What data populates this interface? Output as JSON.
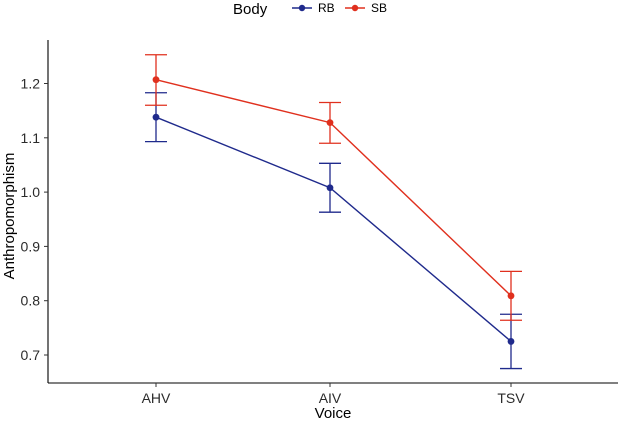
{
  "chart_data": {
    "type": "line",
    "title": "",
    "xlabel": "Voice",
    "ylabel": "Anthropomorphism",
    "categories": [
      "AHV",
      "AIV",
      "TSV"
    ],
    "ylim": [
      0.65,
      1.3
    ],
    "yticks": [
      0.7,
      0.8,
      0.9,
      1.0,
      1.1,
      1.2
    ],
    "ytick_labels": [
      "0.7",
      "0.8",
      "0.9",
      "1.0",
      "1.1",
      "1.2"
    ],
    "grid": false,
    "legend": {
      "title": "Body",
      "position": "top",
      "entries": [
        "RB",
        "SB"
      ]
    },
    "series": [
      {
        "name": "RB",
        "color": "#1f2a8c",
        "values": [
          1.138,
          1.008,
          0.725
        ],
        "err_low": [
          1.093,
          0.963,
          0.675
        ],
        "err_high": [
          1.183,
          1.053,
          0.775
        ]
      },
      {
        "name": "SB",
        "color": "#e0301e",
        "values": [
          1.207,
          1.128,
          0.809
        ],
        "err_low": [
          1.16,
          1.09,
          0.764
        ],
        "err_high": [
          1.253,
          1.165,
          0.854
        ]
      }
    ]
  }
}
